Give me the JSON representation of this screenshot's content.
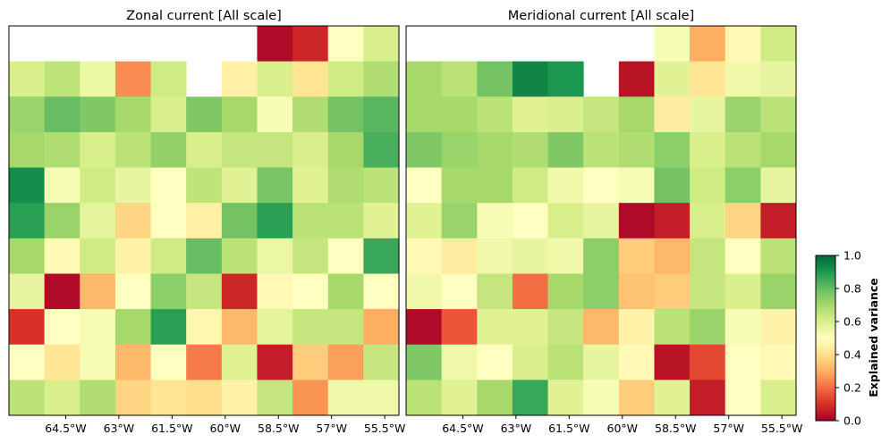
{
  "chart_data": [
    {
      "type": "heatmap",
      "title": "Zonal current [All scale]",
      "xticklabels": [
        "64.5°W",
        "63°W",
        "61.5°W",
        "60°W",
        "58.5°W",
        "57°W",
        "55.5°W"
      ],
      "xlabel": "",
      "ylabel": "",
      "grid": false,
      "rows": 11,
      "cols": 11,
      "values": [
        [
          null,
          null,
          null,
          null,
          null,
          null,
          null,
          0.02,
          0.08,
          0.5,
          0.6
        ],
        [
          0.6,
          0.65,
          0.55,
          0.25,
          0.62,
          null,
          0.45,
          0.6,
          0.42,
          0.62,
          0.68
        ],
        [
          0.72,
          0.8,
          0.76,
          0.7,
          0.6,
          0.76,
          0.7,
          0.52,
          0.68,
          0.78,
          0.82
        ],
        [
          0.7,
          0.68,
          0.6,
          0.66,
          0.73,
          0.6,
          0.64,
          0.64,
          0.6,
          0.7,
          0.84
        ],
        [
          0.92,
          0.52,
          0.62,
          0.56,
          0.5,
          0.65,
          0.58,
          0.77,
          0.58,
          0.68,
          0.66
        ],
        [
          0.88,
          0.72,
          0.57,
          0.38,
          0.5,
          0.45,
          0.78,
          0.88,
          0.66,
          0.66,
          0.58
        ],
        [
          0.7,
          0.48,
          0.62,
          0.46,
          0.62,
          0.8,
          0.66,
          0.55,
          0.64,
          0.5,
          0.86
        ],
        [
          0.56,
          0.02,
          0.32,
          0.5,
          0.74,
          0.64,
          0.08,
          0.48,
          0.5,
          0.7,
          0.5
        ],
        [
          0.1,
          0.5,
          0.52,
          0.7,
          0.88,
          0.47,
          0.32,
          0.57,
          0.64,
          0.64,
          0.3
        ],
        [
          0.5,
          0.42,
          0.52,
          0.32,
          0.5,
          0.22,
          0.58,
          0.06,
          0.36,
          0.28,
          0.64
        ],
        [
          0.66,
          0.6,
          0.68,
          0.38,
          0.42,
          0.4,
          0.46,
          0.64,
          0.26,
          0.54,
          0.54
        ]
      ]
    },
    {
      "type": "heatmap",
      "title": "Meridional current [All scale]",
      "xticklabels": [
        "64.5°W",
        "63°W",
        "61.5°W",
        "60°W",
        "58.5°W",
        "57°W",
        "55.5°W"
      ],
      "xlabel": "",
      "ylabel": "",
      "grid": false,
      "rows": 11,
      "cols": 11,
      "values": [
        [
          null,
          null,
          null,
          null,
          null,
          null,
          null,
          0.52,
          0.3,
          0.48,
          0.62
        ],
        [
          0.7,
          0.66,
          0.78,
          0.94,
          0.9,
          null,
          0.04,
          0.58,
          0.42,
          0.54,
          0.56
        ],
        [
          0.7,
          0.7,
          0.66,
          0.58,
          0.6,
          0.64,
          0.7,
          0.44,
          0.56,
          0.72,
          0.66
        ],
        [
          0.76,
          0.72,
          0.7,
          0.68,
          0.76,
          0.66,
          0.68,
          0.74,
          0.6,
          0.66,
          0.7
        ],
        [
          0.5,
          0.7,
          0.7,
          0.62,
          0.54,
          0.5,
          0.52,
          0.78,
          0.62,
          0.74,
          0.56
        ],
        [
          0.58,
          0.72,
          0.52,
          0.5,
          0.6,
          0.56,
          0.02,
          0.06,
          0.6,
          0.38,
          0.06
        ],
        [
          0.48,
          0.44,
          0.54,
          0.56,
          0.54,
          0.74,
          0.36,
          0.32,
          0.64,
          0.5,
          0.66
        ],
        [
          0.54,
          0.5,
          0.64,
          0.2,
          0.7,
          0.74,
          0.34,
          0.36,
          0.64,
          0.6,
          0.72
        ],
        [
          0.02,
          0.16,
          0.58,
          0.58,
          0.64,
          0.32,
          0.46,
          0.66,
          0.72,
          0.52,
          0.46
        ],
        [
          0.76,
          0.54,
          0.5,
          0.6,
          0.66,
          0.56,
          0.48,
          0.04,
          0.14,
          0.5,
          0.48
        ],
        [
          0.66,
          0.58,
          0.7,
          0.86,
          0.58,
          0.52,
          0.36,
          0.58,
          0.06,
          0.5,
          0.6
        ]
      ]
    }
  ],
  "colorbar": {
    "label": "Explained variance",
    "range": [
      0,
      1
    ],
    "ticks": [
      "0.0",
      "0.2",
      "0.4",
      "0.6",
      "0.8",
      "1.0"
    ],
    "colormap": "RdYlGn"
  }
}
